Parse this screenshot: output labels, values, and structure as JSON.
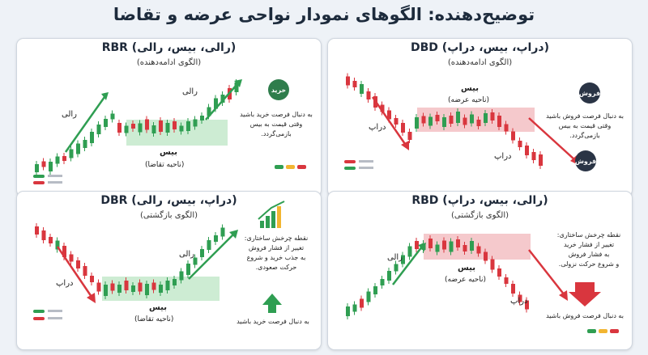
{
  "title": "توضیح‌دهنده: الگوهای نمودار نواحی عرضه و تقاضا",
  "colors": {
    "bull": "#2f9e52",
    "bear": "#d9363e",
    "demand_zone": "#cdecd3",
    "supply_zone": "#f5c9cc",
    "arrow_up": "#2f9e52",
    "arrow_down": "#d9363e"
  },
  "panels": {
    "rbr": {
      "title": "(رالی، بیس، رالی) RBR",
      "subtitle": "(الگوی ادامه‌دهنده)",
      "label_rally_left": "رالی",
      "label_rally_right": "رالی",
      "label_base": "بیس",
      "label_zone": "(ناحیه تقاضا)",
      "badge": "خرید",
      "note": [
        "به دنبال فرصت خرید باشید",
        "وقتی قیمت به بیس",
        "بازمی‌گردد."
      ]
    },
    "dbd": {
      "title": "(دراپ، بیس، دراپ) DBD",
      "subtitle": "(الگوی ادامه‌دهنده)",
      "label_base": "بیس",
      "label_zone": "(ناحیه عرضه)",
      "label_drop_left": "دراپ",
      "label_drop_right": "دراپ",
      "badge_top": "فروش",
      "badge_bottom": "فروش",
      "note": [
        "به دنبال فرصت فروش باشید",
        "وقتی قیمت به بیس",
        "بازمی‌گردد."
      ]
    },
    "dbr": {
      "title": "(دراپ، بیس، رالی) DBR",
      "subtitle": "(الگوی بازگشتی)",
      "label_drop": "دراپ",
      "label_rally": "رالی",
      "label_base": "بیس",
      "label_zone": "(ناحیه تقاضا)",
      "note": [
        "نقطه چرخش ساختاری:",
        "تغییر از فشار فروش",
        "به جذب خرید و شروع",
        "حرکت صعودی."
      ],
      "cta": "به دنبال فرصت خرید باشید"
    },
    "rbd": {
      "title": "(رالی، بیس، دراپ) RBD",
      "subtitle": "(الگوی بازگشتی)",
      "label_rally": "رالی",
      "label_drop": "دراپ",
      "label_base": "بیس",
      "label_zone": "(ناحیه عرضه)",
      "note": [
        "نقطه چرخش ساختاری:",
        "تغییر از فشار خرید",
        "به فشار فروش",
        "و شروع حرکت نزولی."
      ],
      "cta": "به دنبال فرصت فروش باشید"
    }
  }
}
